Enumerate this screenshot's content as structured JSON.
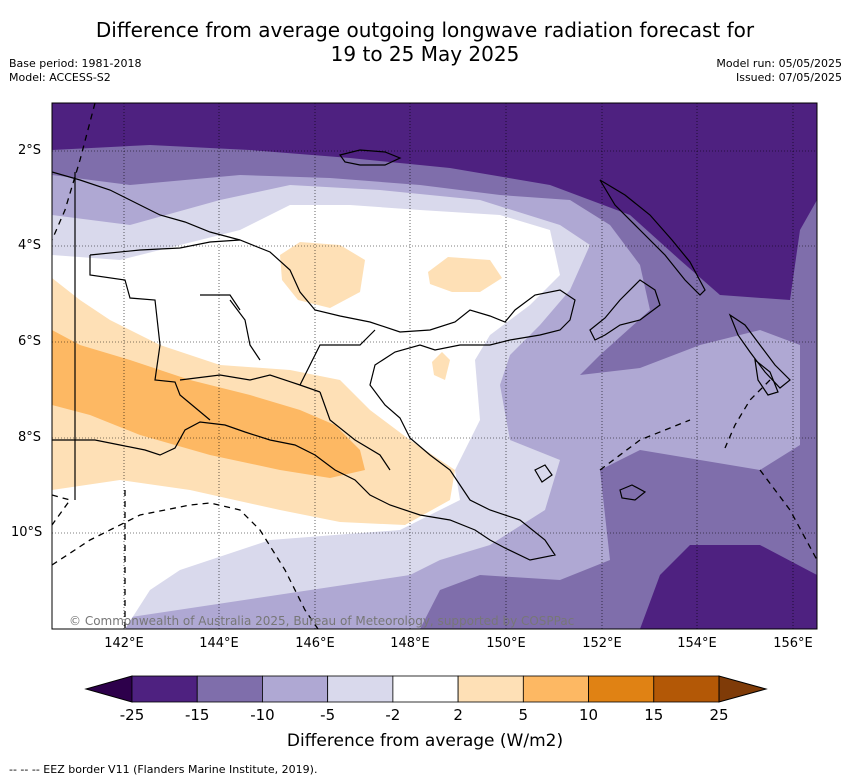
{
  "title_line1": "Difference from average outgoing longwave radiation forecast for",
  "title_line2": "19 to 25 May 2025",
  "base_period": "Base period: 1981-2018",
  "model": "Model: ACCESS-S2",
  "model_run": "Model run: 05/05/2025",
  "issued": "Issued: 07/05/2025",
  "copyright": "© Commonwealth of Australia 2025, Bureau of Meteorology, supported by COSPPac",
  "footnote": "-- -- -- EEZ border V11 (Flanders Marine Institute, 2019).",
  "colorbar": {
    "title": "Difference from average (W/m2)",
    "ticks": [
      "-25",
      "-15",
      "-10",
      "-5",
      "-2",
      "2",
      "5",
      "10",
      "15",
      "25"
    ],
    "colors": [
      "#4e2180",
      "#7f6eab",
      "#afa8d3",
      "#d9d9ec",
      "#ffffff",
      "#fee0b6",
      "#fdb863",
      "#e08214",
      "#b35806"
    ],
    "under_color": "#2d004b",
    "over_color": "#7f3b08"
  },
  "map": {
    "lon_labels": [
      "142°E",
      "144°E",
      "146°E",
      "148°E",
      "150°E",
      "152°E",
      "154°E",
      "156°E"
    ],
    "lat_labels": [
      "2°S",
      "4°S",
      "6°S",
      "8°S",
      "10°S"
    ]
  }
}
